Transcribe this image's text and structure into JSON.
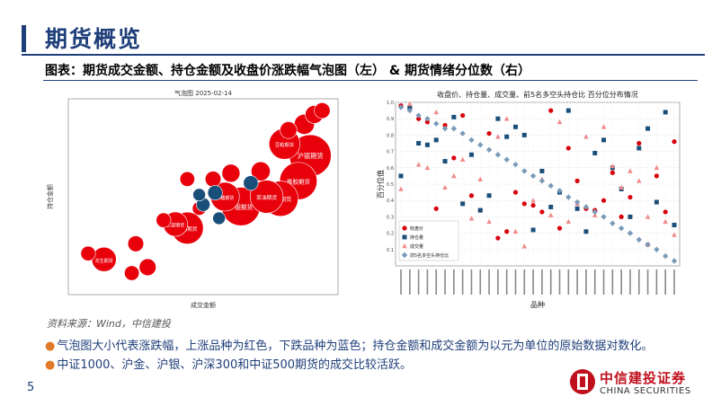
{
  "header": {
    "title": "期货概览"
  },
  "caption": "图表：期货成交金额、持仓金额及收盘价涨跌幅气泡图（左） & 期货情绪分位数（右）",
  "source": "资料来源：Wind，中信建投",
  "bullets": [
    "气泡图大小代表涨跌幅，上涨品种为红色，下跌品种为蓝色；持仓金额和成交金额为以元为单位的原始数据对数化。",
    "中证1000、沪金、沪银、沪深300和中证500期货的成交比较活跃。"
  ],
  "page_number": "5",
  "logo": {
    "cn": "中信建投证券",
    "en": "CHINA SECURITIES"
  },
  "colors": {
    "primary": "#1f3f7a",
    "up": "#e8000b",
    "down": "#1a4f7a",
    "accent": "#e07a2a"
  },
  "chart_data": [
    {
      "type": "scatter",
      "title": "气泡图 2025-02-14",
      "xlabel": "成交金额",
      "ylabel": "持仓金额",
      "points": [
        {
          "label": "沪银期货",
          "x": 7.6,
          "y": 7.55,
          "size": 3.2,
          "dir": "up"
        },
        {
          "label": "豆粕期货",
          "x": 6.95,
          "y": 7.85,
          "size": 2.2,
          "dir": "up"
        },
        {
          "label": "橡胶期货",
          "x": 7.3,
          "y": 6.9,
          "size": 2.8,
          "dir": "up"
        },
        {
          "label": "沪锌期货",
          "x": 6.85,
          "y": 6.45,
          "size": 2.6,
          "dir": "up"
        },
        {
          "label": "菜油期货",
          "x": 6.5,
          "y": 6.5,
          "size": 2.4,
          "dir": "up"
        },
        {
          "label": "沪银期货",
          "x": 5.85,
          "y": 6.25,
          "size": 2.9,
          "dir": "up"
        },
        {
          "label": "白糖期货",
          "x": 5.45,
          "y": 6.5,
          "size": 2.0,
          "dir": "up"
        },
        {
          "label": "沪铝期货",
          "x": 4.5,
          "y": 5.7,
          "size": 2.3,
          "dir": "up"
        },
        {
          "label": "二部期货",
          "x": 4.2,
          "y": 5.8,
          "size": 1.6,
          "dir": "up"
        },
        {
          "label": "花生期货",
          "x": 2.4,
          "y": 4.9,
          "size": 1.6,
          "dir": "up"
        },
        {
          "label": "",
          "x": 7.7,
          "y": 8.6,
          "size": 1.0,
          "dir": "up"
        },
        {
          "label": "",
          "x": 7.45,
          "y": 8.35,
          "size": 1.2,
          "dir": "up"
        },
        {
          "label": "",
          "x": 7.9,
          "y": 8.7,
          "size": 0.8,
          "dir": "up"
        },
        {
          "label": "",
          "x": 7.05,
          "y": 8.2,
          "size": 0.9,
          "dir": "up"
        },
        {
          "label": "",
          "x": 6.35,
          "y": 7.15,
          "size": 1.1,
          "dir": "up"
        },
        {
          "label": "",
          "x": 5.6,
          "y": 7.1,
          "size": 1.0,
          "dir": "up"
        },
        {
          "label": "",
          "x": 6.1,
          "y": 6.85,
          "size": 0.7,
          "dir": "down"
        },
        {
          "label": "",
          "x": 5.15,
          "y": 6.95,
          "size": 0.8,
          "dir": "up"
        },
        {
          "label": "",
          "x": 4.5,
          "y": 6.95,
          "size": 0.7,
          "dir": "up"
        },
        {
          "label": "",
          "x": 5.2,
          "y": 6.6,
          "size": 0.7,
          "dir": "down"
        },
        {
          "label": "",
          "x": 4.8,
          "y": 6.2,
          "size": 0.6,
          "dir": "up"
        },
        {
          "label": "",
          "x": 3.9,
          "y": 5.9,
          "size": 0.7,
          "dir": "up"
        },
        {
          "label": "",
          "x": 5.3,
          "y": 5.95,
          "size": 0.5,
          "dir": "down"
        },
        {
          "label": "",
          "x": 4.9,
          "y": 6.3,
          "size": 0.6,
          "dir": "down"
        },
        {
          "label": "",
          "x": 4.8,
          "y": 6.55,
          "size": 0.5,
          "dir": "down"
        },
        {
          "label": "",
          "x": 3.2,
          "y": 5.3,
          "size": 0.8,
          "dir": "up"
        },
        {
          "label": "",
          "x": 2.0,
          "y": 5.05,
          "size": 0.7,
          "dir": "up"
        },
        {
          "label": "",
          "x": 3.5,
          "y": 4.7,
          "size": 0.9,
          "dir": "up"
        },
        {
          "label": "",
          "x": 3.1,
          "y": 4.55,
          "size": 0.7,
          "dir": "up"
        }
      ]
    },
    {
      "type": "scatter",
      "title": "收盘价、持仓量、成交量、前5名多空头持仓比 百分位分布情况",
      "xlabel": "品种",
      "ylabel": "百分位值",
      "ylim": [
        0,
        1
      ],
      "legend": [
        "收盘价",
        "持仓量",
        "成交量",
        "前5名多空头持仓比"
      ],
      "series": [
        {
          "name": "收盘价",
          "values": [
            0.98,
            0.97,
            0.9,
            0.88,
            0.35,
            0.86,
            0.66,
            0.92,
            0.43,
            0.34,
            0.81,
            0.17,
            0.21,
            0.45,
            0.38,
            0.37,
            0.33,
            0.95,
            0.23,
            0.72,
            0.52,
            0.35,
            0.34,
            0.4,
            0.57,
            0.3,
            0.42,
            0.75,
            0.13,
            0.55,
            0.33,
            0.76
          ]
        },
        {
          "name": "持仓量",
          "values": [
            0.55,
            0.97,
            0.75,
            0.74,
            0.77,
            0.64,
            0.91,
            0.38,
            0.68,
            0.34,
            0.43,
            0.9,
            0.79,
            0.85,
            0.8,
            0.22,
            0.58,
            0.36,
            0.45,
            0.95,
            0.35,
            0.21,
            0.69,
            0.77,
            0.6,
            0.47,
            0.3,
            0.72,
            0.84,
            0.39,
            0.94,
            0.25
          ]
        },
        {
          "name": "成交量",
          "values": [
            0.47,
            0.99,
            0.62,
            0.6,
            0.94,
            0.48,
            0.55,
            0.65,
            0.29,
            0.53,
            0.27,
            0.79,
            0.9,
            0.21,
            0.12,
            0.4,
            0.53,
            0.31,
            0.88,
            0.27,
            0.38,
            0.79,
            0.31,
            0.85,
            0.61,
            0.48,
            0.58,
            0.52,
            0.3,
            0.6,
            0.27,
            0.19
          ]
        },
        {
          "name": "前5名多空头持仓比",
          "values": [
            0.97,
            0.95,
            0.92,
            0.9,
            0.87,
            0.84,
            0.84,
            0.81,
            0.77,
            0.74,
            0.71,
            0.68,
            0.65,
            0.62,
            0.58,
            0.55,
            0.52,
            0.49,
            0.46,
            0.42,
            0.39,
            0.36,
            0.33,
            0.3,
            0.26,
            0.23,
            0.2,
            0.16,
            0.13,
            0.1,
            0.06,
            0.03
          ]
        }
      ]
    }
  ]
}
